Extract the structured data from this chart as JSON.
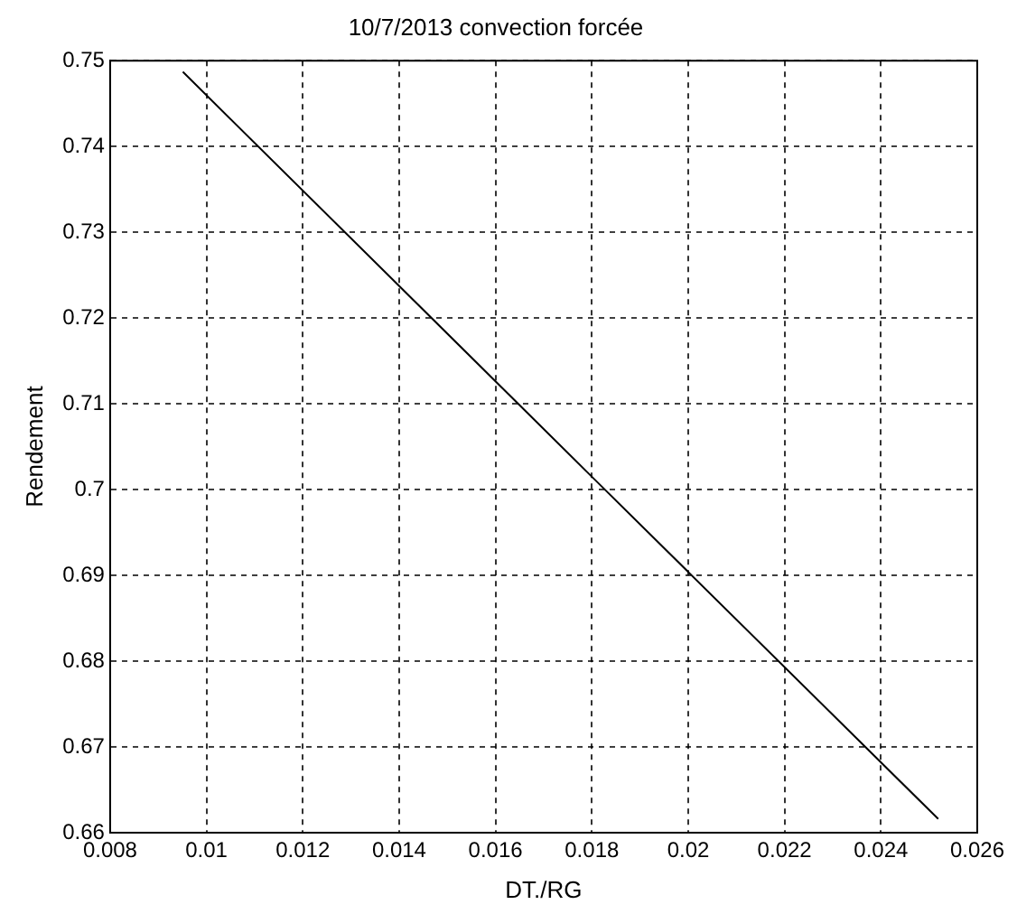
{
  "chart_data": {
    "type": "line",
    "title": "10/7/2013 convection forcée",
    "xlabel": "DT./RG",
    "ylabel": "Rendement",
    "x": [
      0.00951,
      0.018,
      0.02519
    ],
    "series": [
      {
        "color": "#000000",
        "values": [
          0.7487,
          0.7015,
          0.6616
        ]
      }
    ],
    "xlim": [
      0.008,
      0.026
    ],
    "xticks": [
      0.008,
      0.01,
      0.012,
      0.014,
      0.016,
      0.018,
      0.02,
      0.022,
      0.024,
      0.026
    ],
    "ylim": [
      0.66,
      0.75
    ],
    "yticks": [
      0.66,
      0.67,
      0.68,
      0.69,
      0.7,
      0.71,
      0.72,
      0.73,
      0.74,
      0.75
    ],
    "grid": true,
    "legend": false,
    "marker": "none",
    "line_style": "solid"
  }
}
